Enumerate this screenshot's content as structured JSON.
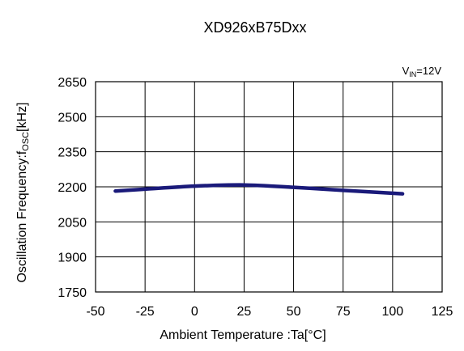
{
  "chart_data": {
    "type": "line",
    "title": "XD926xB75Dxx",
    "condition": {
      "label_main": "V",
      "label_sub": "IN",
      "label_rest": "=12V"
    },
    "xlabel": "Ambient Temperature :Ta[°C]",
    "ylabel": {
      "main": "Oscillation Frequency:f",
      "sub": "OSC",
      "rest": "[kHz]"
    },
    "xlim": [
      -50,
      125
    ],
    "ylim": [
      1750,
      2650
    ],
    "x_ticks": [
      -50,
      -25,
      0,
      25,
      50,
      75,
      100,
      125
    ],
    "y_ticks": [
      1750,
      1900,
      2050,
      2200,
      2350,
      2500,
      2650
    ],
    "grid": true,
    "series": [
      {
        "color": "#1a1a7a",
        "x": [
          -40,
          -25,
          0,
          25,
          50,
          75,
          105
        ],
        "y": [
          2182,
          2190,
          2203,
          2208,
          2198,
          2185,
          2170
        ]
      }
    ]
  }
}
